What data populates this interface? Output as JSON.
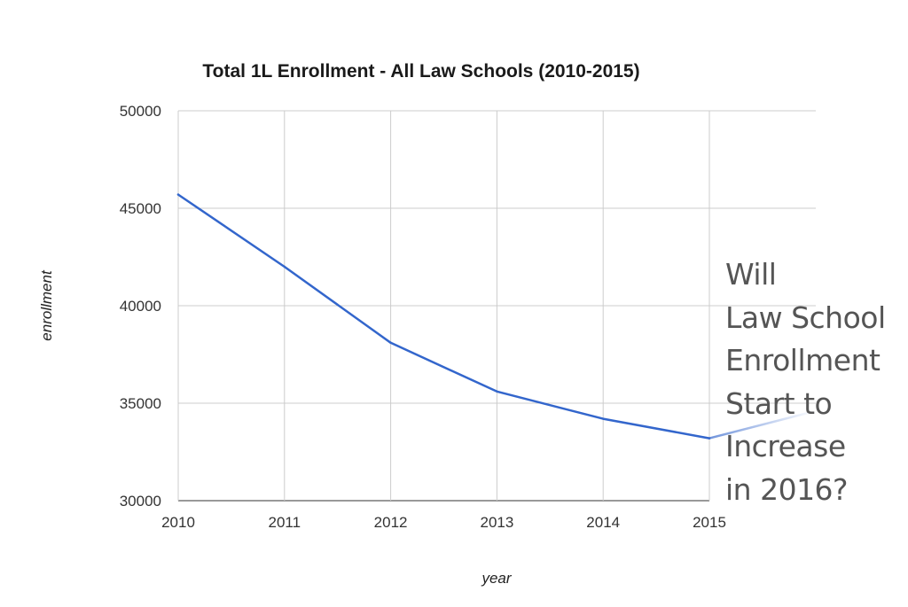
{
  "chart_data": {
    "type": "line",
    "title": "Total 1L Enrollment - All Law Schools (2010-2015)",
    "xlabel": "year",
    "ylabel": "enrollment",
    "x": [
      2010,
      2011,
      2012,
      2013,
      2014,
      2015
    ],
    "x_tick_labels": [
      "2010",
      "2011",
      "2012",
      "2013",
      "2014",
      "2015"
    ],
    "y_tick_labels": [
      "30000",
      "35000",
      "40000",
      "45000",
      "50000"
    ],
    "y_ticks": [
      30000,
      35000,
      40000,
      45000,
      50000
    ],
    "ylim": [
      30000,
      50000
    ],
    "xlim": [
      2010,
      2016
    ],
    "grid": true,
    "series": [
      {
        "values": [
          45700,
          42000,
          38100,
          35600,
          34200,
          33200
        ],
        "color": "#3366cc"
      }
    ],
    "projection_to": [
      2016,
      34600
    ]
  },
  "overlay": {
    "lines": [
      "Will",
      "Law School",
      "Enrollment",
      "Start to",
      "Increase",
      "in 2016?"
    ]
  }
}
